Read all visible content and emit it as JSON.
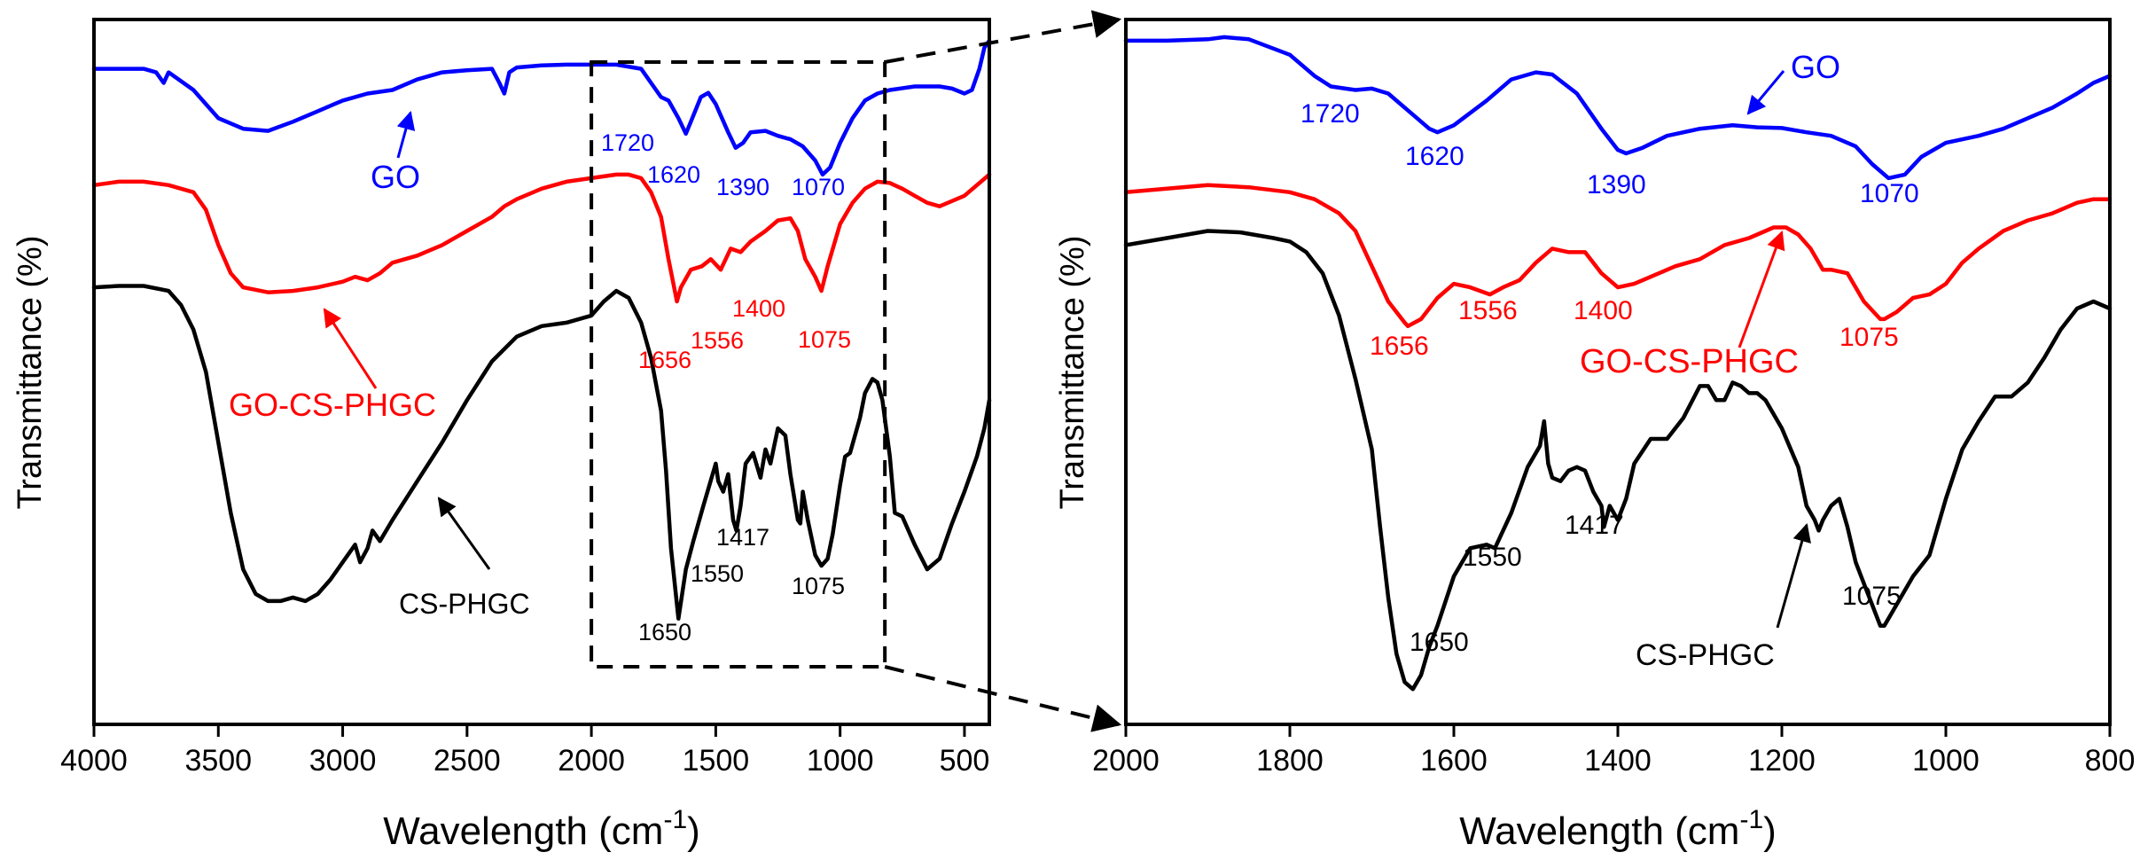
{
  "chart_data": [
    {
      "type": "line",
      "xlabel": "Wavelength (cm",
      "xlabel_sup": "-1",
      "xlabel_close": ")",
      "ylabel": "Transmittance (%)",
      "xlim": [
        4000,
        400
      ],
      "ylim": [
        0,
        100
      ],
      "xticks": [
        4000,
        3500,
        3000,
        2500,
        2000,
        1500,
        1000,
        500
      ],
      "zoom_box_x": [
        2000,
        820
      ],
      "series": [
        {
          "name": "GO",
          "color": "#0000ff",
          "x": [
            4000,
            3900,
            3800,
            3750,
            3720,
            3700,
            3600,
            3500,
            3400,
            3300,
            3200,
            3100,
            3000,
            2900,
            2800,
            2700,
            2600,
            2500,
            2400,
            2370,
            2350,
            2330,
            2300,
            2200,
            2100,
            2000,
            1900,
            1800,
            1760,
            1720,
            1690,
            1650,
            1620,
            1600,
            1560,
            1530,
            1500,
            1450,
            1420,
            1390,
            1360,
            1300,
            1250,
            1200,
            1150,
            1100,
            1070,
            1040,
            1000,
            950,
            900,
            850,
            800,
            700,
            600,
            550,
            500,
            470,
            440,
            420,
            400
          ],
          "y": [
            93.0,
            93.0,
            93.0,
            92.5,
            91.0,
            92.5,
            90.0,
            86.0,
            84.5,
            84.2,
            85.5,
            87.0,
            88.5,
            89.5,
            90.0,
            91.5,
            92.5,
            92.8,
            93.0,
            91.0,
            89.5,
            92.5,
            93.2,
            93.5,
            93.6,
            93.6,
            93.6,
            93.0,
            91.0,
            89.0,
            88.5,
            86.0,
            83.8,
            85.5,
            89.0,
            89.6,
            88.0,
            84.0,
            81.8,
            82.5,
            84.0,
            84.2,
            83.5,
            83.0,
            82.0,
            80.0,
            78.0,
            79.0,
            82.5,
            86.0,
            88.5,
            89.5,
            90.0,
            90.5,
            90.5,
            90.2,
            89.5,
            90.0,
            93.0,
            96.0,
            97.0
          ]
        },
        {
          "name": "GO-CS-PHGC",
          "color": "#ff0000",
          "x": [
            4000,
            3900,
            3800,
            3700,
            3600,
            3550,
            3500,
            3450,
            3400,
            3300,
            3200,
            3100,
            3000,
            2950,
            2900,
            2850,
            2800,
            2700,
            2600,
            2500,
            2400,
            2350,
            2300,
            2200,
            2100,
            2000,
            1900,
            1850,
            1800,
            1760,
            1720,
            1690,
            1656,
            1640,
            1600,
            1556,
            1520,
            1480,
            1440,
            1400,
            1360,
            1300,
            1250,
            1200,
            1170,
            1140,
            1100,
            1075,
            1050,
            1000,
            950,
            900,
            850,
            800,
            750,
            700,
            650,
            600,
            500,
            400
          ],
          "y": [
            76.5,
            77.0,
            77.0,
            76.5,
            75.5,
            73.0,
            68.0,
            64.0,
            62.0,
            61.3,
            61.5,
            62.0,
            62.8,
            63.5,
            63.0,
            64.0,
            65.5,
            66.5,
            68.0,
            70.0,
            72.0,
            73.5,
            74.5,
            76.0,
            77.0,
            77.5,
            78.0,
            78.0,
            77.5,
            75.5,
            72.0,
            66.0,
            60.0,
            62.0,
            64.5,
            65.0,
            66.0,
            64.5,
            67.5,
            67.0,
            68.5,
            70.0,
            71.5,
            71.8,
            70.0,
            66.0,
            63.5,
            61.5,
            65.0,
            71.0,
            74.0,
            76.0,
            77.0,
            76.8,
            76.0,
            75.0,
            74.0,
            73.5,
            75.0,
            78.0
          ]
        },
        {
          "name": "CS-PHGC",
          "color": "#000000",
          "x": [
            4000,
            3900,
            3800,
            3700,
            3650,
            3600,
            3550,
            3500,
            3450,
            3400,
            3350,
            3300,
            3250,
            3200,
            3150,
            3100,
            3050,
            3000,
            2950,
            2930,
            2900,
            2880,
            2850,
            2800,
            2700,
            2600,
            2500,
            2400,
            2300,
            2200,
            2100,
            2000,
            1950,
            1900,
            1850,
            1800,
            1760,
            1720,
            1700,
            1680,
            1650,
            1620,
            1590,
            1550,
            1500,
            1490,
            1470,
            1450,
            1430,
            1417,
            1400,
            1380,
            1350,
            1320,
            1300,
            1280,
            1250,
            1220,
            1200,
            1170,
            1160,
            1150,
            1130,
            1100,
            1075,
            1050,
            1030,
            1000,
            980,
            960,
            940,
            920,
            900,
            870,
            850,
            830,
            800,
            780,
            750,
            700,
            650,
            600,
            550,
            500,
            450,
            420,
            400
          ],
          "y": [
            62.0,
            62.2,
            62.2,
            61.5,
            59.5,
            56.0,
            50.0,
            40.0,
            30.0,
            22.0,
            18.5,
            17.5,
            17.5,
            18.0,
            17.5,
            18.5,
            20.5,
            23.0,
            25.5,
            23.0,
            25.0,
            27.5,
            26.0,
            29.0,
            34.5,
            40.0,
            46.0,
            51.5,
            55.0,
            56.5,
            57.0,
            58.0,
            60.0,
            61.5,
            60.5,
            57.0,
            52.0,
            44.5,
            36.0,
            25.0,
            15.0,
            22.0,
            26.0,
            31.0,
            37.0,
            34.5,
            33.0,
            35.5,
            29.0,
            27.5,
            31.0,
            37.0,
            38.5,
            35.0,
            39.0,
            37.0,
            42.0,
            41.0,
            35.5,
            29.0,
            28.5,
            33.0,
            29.0,
            24.0,
            22.5,
            23.5,
            27.0,
            34.0,
            38.0,
            38.5,
            41.0,
            43.5,
            47.0,
            49.0,
            48.5,
            46.0,
            38.0,
            30.0,
            29.5,
            25.5,
            22.0,
            23.5,
            28.5,
            33.0,
            38.0,
            42.0,
            46.0
          ]
        }
      ],
      "annotations": [
        {
          "text": "1720",
          "series": "GO"
        },
        {
          "text": "1620",
          "series": "GO"
        },
        {
          "text": "1390",
          "series": "GO"
        },
        {
          "text": "1070",
          "series": "GO"
        },
        {
          "text": "1656",
          "series": "GO-CS-PHGC"
        },
        {
          "text": "1556",
          "series": "GO-CS-PHGC"
        },
        {
          "text": "1400",
          "series": "GO-CS-PHGC"
        },
        {
          "text": "1075",
          "series": "GO-CS-PHGC"
        },
        {
          "text": "1650",
          "series": "CS-PHGC"
        },
        {
          "text": "1550",
          "series": "CS-PHGC"
        },
        {
          "text": "1417",
          "series": "CS-PHGC"
        },
        {
          "text": "1075",
          "series": "CS-PHGC"
        }
      ],
      "series_labels": [
        {
          "text": "GO",
          "series": "GO"
        },
        {
          "text": "GO-CS-PHGC",
          "series": "GO-CS-PHGC"
        },
        {
          "text": "CS-PHGC",
          "series": "CS-PHGC"
        }
      ]
    },
    {
      "type": "line",
      "xlabel": "Wavelength (cm",
      "xlabel_sup": "-1",
      "xlabel_close": ")",
      "ylabel": "Transmittance (%)",
      "xlim": [
        2000,
        800
      ],
      "ylim": [
        0,
        100
      ],
      "xticks": [
        2000,
        1800,
        1600,
        1400,
        1200,
        1000,
        800
      ],
      "series": [
        {
          "name": "GO",
          "color": "#0000ff",
          "x": [
            2000,
            1950,
            1900,
            1880,
            1850,
            1800,
            1770,
            1750,
            1720,
            1700,
            1680,
            1650,
            1630,
            1620,
            1600,
            1560,
            1530,
            1500,
            1480,
            1450,
            1420,
            1400,
            1390,
            1370,
            1340,
            1300,
            1260,
            1230,
            1200,
            1170,
            1140,
            1110,
            1090,
            1070,
            1050,
            1030,
            1000,
            960,
            930,
            900,
            870,
            840,
            820,
            800
          ],
          "y": [
            97.0,
            97.0,
            97.2,
            97.5,
            97.2,
            95.0,
            92.0,
            90.5,
            90.0,
            90.2,
            89.5,
            86.5,
            84.5,
            84.0,
            85.0,
            88.5,
            91.5,
            92.5,
            92.2,
            89.5,
            84.5,
            81.5,
            81.0,
            81.8,
            83.5,
            84.5,
            85.0,
            84.7,
            84.6,
            84.0,
            83.5,
            82.0,
            79.5,
            77.5,
            78.0,
            80.5,
            82.5,
            83.5,
            84.5,
            86.0,
            87.5,
            89.5,
            91.0,
            92.0
          ]
        },
        {
          "name": "GO-CS-PHGC",
          "color": "#ff0000",
          "x": [
            2000,
            1950,
            1900,
            1850,
            1800,
            1770,
            1740,
            1720,
            1700,
            1680,
            1660,
            1656,
            1640,
            1620,
            1600,
            1580,
            1556,
            1540,
            1520,
            1500,
            1480,
            1460,
            1440,
            1420,
            1400,
            1380,
            1360,
            1330,
            1300,
            1270,
            1240,
            1210,
            1195,
            1180,
            1165,
            1150,
            1140,
            1120,
            1100,
            1080,
            1075,
            1060,
            1040,
            1020,
            1000,
            980,
            960,
            930,
            900,
            870,
            840,
            820,
            800
          ],
          "y": [
            75.5,
            76.0,
            76.5,
            76.2,
            75.5,
            74.5,
            72.5,
            70.0,
            65.0,
            60.0,
            57.0,
            56.5,
            57.5,
            60.5,
            62.5,
            62.0,
            61.0,
            62.0,
            63.0,
            65.5,
            67.5,
            67.0,
            67.0,
            64.0,
            62.0,
            62.5,
            63.5,
            65.0,
            66.0,
            68.0,
            69.0,
            70.5,
            70.5,
            69.5,
            67.5,
            64.5,
            64.5,
            64.0,
            60.0,
            57.5,
            57.5,
            58.5,
            60.5,
            61.0,
            62.5,
            65.5,
            67.5,
            70.0,
            71.5,
            72.5,
            74.0,
            74.5,
            74.5
          ]
        },
        {
          "name": "CS-PHGC",
          "color": "#000000",
          "x": [
            2000,
            1950,
            1900,
            1860,
            1820,
            1800,
            1780,
            1760,
            1740,
            1720,
            1700,
            1690,
            1680,
            1670,
            1660,
            1650,
            1640,
            1630,
            1620,
            1600,
            1580,
            1560,
            1550,
            1530,
            1510,
            1495,
            1490,
            1485,
            1480,
            1470,
            1460,
            1450,
            1440,
            1430,
            1420,
            1417,
            1410,
            1400,
            1390,
            1380,
            1360,
            1340,
            1320,
            1300,
            1290,
            1280,
            1270,
            1260,
            1250,
            1240,
            1230,
            1220,
            1200,
            1180,
            1170,
            1160,
            1155,
            1150,
            1140,
            1130,
            1120,
            1110,
            1100,
            1090,
            1080,
            1075,
            1060,
            1040,
            1020,
            1000,
            980,
            960,
            940,
            920,
            900,
            880,
            860,
            840,
            820,
            800
          ],
          "y": [
            68.0,
            69.0,
            70.0,
            69.8,
            69.0,
            68.5,
            67.0,
            64.0,
            58.0,
            49.0,
            39.0,
            28.0,
            18.0,
            10.0,
            6.0,
            5.0,
            7.0,
            11.0,
            14.0,
            21.0,
            25.0,
            25.5,
            25.0,
            30.0,
            36.5,
            39.5,
            43.0,
            37.0,
            35.0,
            34.5,
            36.0,
            36.5,
            36.0,
            33.0,
            31.0,
            28.0,
            31.0,
            29.0,
            32.0,
            37.0,
            40.5,
            40.5,
            43.5,
            48.0,
            48.0,
            46.0,
            46.0,
            48.5,
            48.0,
            47.0,
            47.0,
            46.0,
            42.0,
            36.5,
            31.0,
            29.0,
            27.5,
            29.0,
            31.0,
            32.0,
            28.0,
            23.0,
            20.0,
            17.0,
            14.0,
            14.0,
            17.0,
            21.0,
            24.0,
            32.0,
            39.0,
            43.0,
            46.5,
            46.5,
            48.5,
            52.0,
            56.0,
            59.0,
            60.0,
            59.0
          ]
        }
      ],
      "annotations": [
        {
          "text": "1720",
          "series": "GO"
        },
        {
          "text": "1620",
          "series": "GO"
        },
        {
          "text": "1390",
          "series": "GO"
        },
        {
          "text": "1070",
          "series": "GO"
        },
        {
          "text": "1656",
          "series": "GO-CS-PHGC"
        },
        {
          "text": "1556",
          "series": "GO-CS-PHGC"
        },
        {
          "text": "1400",
          "series": "GO-CS-PHGC"
        },
        {
          "text": "1075",
          "series": "GO-CS-PHGC"
        },
        {
          "text": "1650",
          "series": "CS-PHGC"
        },
        {
          "text": "1550",
          "series": "CS-PHGC"
        },
        {
          "text": "1417",
          "series": "CS-PHGC"
        },
        {
          "text": "1075",
          "series": "CS-PHGC"
        }
      ],
      "series_labels": [
        {
          "text": "GO",
          "series": "GO"
        },
        {
          "text": "GO-CS-PHGC",
          "series": "GO-CS-PHGC"
        },
        {
          "text": "CS-PHGC",
          "series": "CS-PHGC"
        }
      ]
    }
  ]
}
